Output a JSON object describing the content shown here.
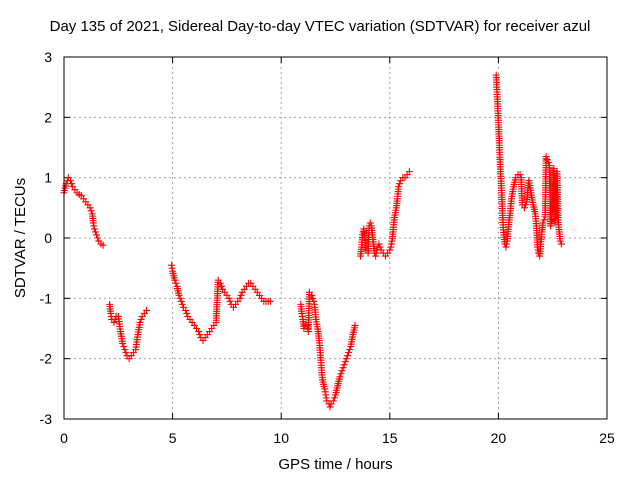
{
  "chart_data": {
    "type": "scatter",
    "title": "Day 135 of 2021, Sidereal Day-to-day VTEC variation (SDTVAR) for receiver azul",
    "xlabel": "GPS time / hours",
    "ylabel": "SDTVAR / TECUs",
    "xlim": [
      0,
      25
    ],
    "ylim": [
      -3,
      3
    ],
    "xticks": [
      "0",
      "5",
      "10",
      "15",
      "20",
      "25"
    ],
    "yticks": [
      "-3",
      "-2",
      "-1",
      "0",
      "1",
      "2",
      "3"
    ],
    "grid": true,
    "marker": "+",
    "color": "#ff0000",
    "series": [
      {
        "name": "segment-1",
        "x": [
          0.0,
          0.1,
          0.2,
          0.3,
          0.4,
          0.5,
          0.6,
          0.7,
          0.8,
          0.9,
          1.0,
          1.1,
          1.2,
          1.3,
          1.35,
          1.4,
          1.5,
          1.6,
          1.7,
          1.8
        ],
        "y": [
          0.75,
          0.9,
          1.0,
          0.95,
          0.85,
          0.8,
          0.75,
          0.72,
          0.7,
          0.65,
          0.6,
          0.55,
          0.5,
          0.4,
          0.25,
          0.15,
          0.05,
          -0.05,
          -0.1,
          -0.12
        ]
      },
      {
        "name": "segment-2",
        "x": [
          2.1,
          2.15,
          2.2,
          2.3,
          2.4,
          2.5,
          2.6,
          2.7,
          2.8,
          2.9,
          3.0,
          3.1,
          3.2,
          3.3,
          3.4,
          3.5,
          3.6,
          3.7,
          3.8
        ],
        "y": [
          -1.1,
          -1.25,
          -1.35,
          -1.4,
          -1.3,
          -1.3,
          -1.55,
          -1.75,
          -1.85,
          -1.95,
          -2.0,
          -1.95,
          -1.9,
          -1.85,
          -1.6,
          -1.4,
          -1.3,
          -1.25,
          -1.2
        ]
      },
      {
        "name": "segment-3",
        "x": [
          4.95,
          5.0,
          5.1,
          5.2,
          5.3,
          5.4,
          5.5,
          5.6,
          5.7,
          5.8,
          5.9,
          6.0,
          6.1,
          6.2,
          6.3,
          6.4,
          6.5,
          6.6,
          6.7,
          6.8,
          6.9,
          7.0,
          7.1,
          7.2,
          7.3,
          7.4,
          7.5,
          7.6,
          7.7,
          7.8,
          7.9,
          8.0,
          8.1,
          8.2,
          8.3,
          8.4,
          8.5,
          8.6,
          8.7,
          8.8,
          8.9,
          9.0,
          9.1,
          9.2,
          9.3,
          9.4,
          9.5
        ],
        "y": [
          -0.45,
          -0.55,
          -0.7,
          -0.8,
          -0.95,
          -1.05,
          -1.15,
          -1.2,
          -1.3,
          -1.35,
          -1.4,
          -1.45,
          -1.5,
          -1.55,
          -1.65,
          -1.7,
          -1.65,
          -1.6,
          -1.55,
          -1.5,
          -1.45,
          -1.4,
          -0.7,
          -0.75,
          -0.85,
          -0.9,
          -0.95,
          -1.0,
          -1.1,
          -1.15,
          -1.1,
          -1.05,
          -1.0,
          -0.9,
          -0.85,
          -0.8,
          -0.75,
          -0.75,
          -0.8,
          -0.85,
          -0.9,
          -0.95,
          -1.0,
          -1.05,
          -1.05,
          -1.05,
          -1.05
        ]
      },
      {
        "name": "segment-4",
        "x": [
          10.9,
          10.95,
          11.0,
          11.05,
          11.1,
          11.2,
          11.25,
          11.3,
          11.4,
          11.5,
          11.55,
          11.6,
          11.7,
          11.75,
          11.8,
          11.85,
          11.9,
          12.0,
          12.05,
          12.1,
          12.2,
          12.25,
          12.3,
          12.4,
          12.5,
          12.6,
          12.7,
          12.8,
          12.9,
          13.0,
          13.1,
          13.2,
          13.3,
          13.4
        ],
        "y": [
          -1.1,
          -1.25,
          -1.35,
          -1.5,
          -1.45,
          -1.45,
          -1.55,
          -0.9,
          -0.95,
          -1.05,
          -1.15,
          -1.35,
          -1.55,
          -1.7,
          -1.9,
          -2.15,
          -2.35,
          -2.5,
          -2.6,
          -2.7,
          -2.75,
          -2.8,
          -2.75,
          -2.7,
          -2.6,
          -2.45,
          -2.3,
          -2.2,
          -2.1,
          -2.0,
          -1.9,
          -1.8,
          -1.6,
          -1.45
        ]
      },
      {
        "name": "segment-5",
        "x": [
          13.65,
          13.7,
          13.75,
          13.8,
          13.85,
          13.9,
          14.0,
          14.05,
          14.1,
          14.15,
          14.2,
          14.3,
          14.35,
          14.4,
          14.5,
          14.6,
          14.7,
          14.8,
          14.9,
          15.0,
          15.05,
          15.1,
          15.15,
          15.2,
          15.3,
          15.35,
          15.4,
          15.5,
          15.6,
          15.7,
          15.8,
          15.9
        ],
        "y": [
          -0.3,
          -0.15,
          0.05,
          0.15,
          0.0,
          -0.2,
          -0.25,
          0.2,
          0.25,
          0.2,
          0.05,
          -0.25,
          -0.3,
          -0.2,
          -0.1,
          -0.2,
          -0.25,
          -0.3,
          -0.25,
          -0.2,
          -0.15,
          -0.05,
          0.1,
          0.3,
          0.5,
          0.65,
          0.85,
          0.95,
          1.0,
          1.0,
          1.05,
          1.1
        ]
      },
      {
        "name": "segment-6",
        "x": [
          19.9,
          19.95,
          20.0,
          20.05,
          20.1,
          20.15,
          20.2,
          20.25,
          20.3,
          20.35,
          20.4,
          20.5,
          20.55,
          20.6,
          20.7,
          20.8,
          20.9,
          21.0,
          21.05,
          21.1,
          21.2,
          21.3,
          21.4,
          21.5,
          21.6,
          21.7,
          21.75,
          21.8,
          21.85,
          21.9,
          21.95,
          22.0,
          22.05,
          22.1,
          22.15,
          22.2,
          22.25,
          22.3,
          22.35,
          22.4,
          22.45,
          22.5,
          22.55,
          22.6,
          22.65,
          22.7,
          22.75,
          22.8,
          22.85,
          22.9
        ],
        "y": [
          2.7,
          2.3,
          1.95,
          1.5,
          1.1,
          0.75,
          0.3,
          0.05,
          -0.1,
          -0.15,
          -0.05,
          0.3,
          0.45,
          0.65,
          0.85,
          1.0,
          1.05,
          1.05,
          1.0,
          0.55,
          0.5,
          0.6,
          0.95,
          0.75,
          0.55,
          0.4,
          0.2,
          -0.15,
          -0.25,
          -0.3,
          -0.1,
          0.1,
          0.25,
          0.3,
          0.35,
          1.35,
          1.3,
          1.25,
          1.2,
          0.2,
          0.35,
          0.45,
          1.15,
          0.25,
          0.35,
          1.1,
          0.3,
          0.1,
          -0.05,
          -0.1
        ]
      }
    ]
  }
}
